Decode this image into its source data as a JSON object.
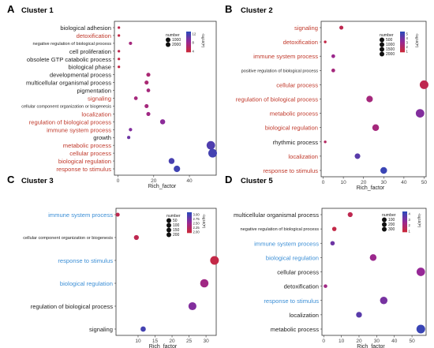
{
  "figure": {
    "colors": {
      "red_label": "#c0392b",
      "blue_label": "#3c8fd6",
      "black_label": "#222222",
      "dot_low": "#c8283e",
      "dot_high": "#3048b8"
    }
  },
  "chart_data": [
    {
      "type": "scatter",
      "panel": "A",
      "title": "Cluster 1",
      "xlabel": "Rich_factor",
      "ylabel": "",
      "xlim": [
        -2,
        55
      ],
      "xticks": [
        0,
        20,
        40
      ],
      "legend": {
        "size_title": "number",
        "size_values": [
          1000,
          2000
        ],
        "size_labels": [
          "1000",
          "2000"
        ],
        "color_title": "-log10(P)",
        "color_ticks": [
          "12",
          "8",
          "4"
        ],
        "placement": "top-right"
      },
      "categories": [
        "biological adhesion",
        "detoxification",
        "negative regulation of biological process",
        "cell proliferation",
        "obsolete GTP catabolic process",
        "biological phase",
        "developmental process",
        "multicellular organismal process",
        "pigmentation",
        "signaling",
        "cellular component organization or biogenesis",
        "localization",
        "regulation of biological process",
        "immune system process",
        "growth",
        "metabolic process",
        "cellular process",
        "biological regulation",
        "response to stimulus"
      ],
      "label_colors": [
        "black",
        "red",
        "black",
        "black",
        "black",
        "black",
        "black",
        "black",
        "black",
        "red",
        "black",
        "red",
        "red",
        "red",
        "black",
        "red",
        "red",
        "red",
        "red"
      ],
      "label_sizes": [
        "n",
        "n",
        "s",
        "n",
        "n",
        "n",
        "n",
        "n",
        "n",
        "n",
        "s",
        "n",
        "n",
        "n",
        "n",
        "n",
        "n",
        "n",
        "n"
      ],
      "points": [
        {
          "x": 0.5,
          "number": 20,
          "color": 0.1
        },
        {
          "x": 0.5,
          "number": 20,
          "color": 0.05
        },
        {
          "x": 7,
          "number": 80,
          "color": 0.35
        },
        {
          "x": 0.5,
          "number": 20,
          "color": 0.1
        },
        {
          "x": 0.5,
          "number": 20,
          "color": 0.05
        },
        {
          "x": 0.5,
          "number": 20,
          "color": 0.05
        },
        {
          "x": 17,
          "number": 200,
          "color": 0.3
        },
        {
          "x": 16,
          "number": 200,
          "color": 0.3
        },
        {
          "x": 17,
          "number": 150,
          "color": 0.35
        },
        {
          "x": 10,
          "number": 150,
          "color": 0.35
        },
        {
          "x": 16,
          "number": 200,
          "color": 0.35
        },
        {
          "x": 17,
          "number": 200,
          "color": 0.4
        },
        {
          "x": 25,
          "number": 450,
          "color": 0.55
        },
        {
          "x": 7,
          "number": 100,
          "color": 0.6
        },
        {
          "x": 6,
          "number": 80,
          "color": 0.7
        },
        {
          "x": 52,
          "number": 1900,
          "color": 0.85
        },
        {
          "x": 53,
          "number": 2000,
          "color": 0.9
        },
        {
          "x": 30,
          "number": 700,
          "color": 0.88
        },
        {
          "x": 33,
          "number": 900,
          "color": 0.92
        }
      ]
    },
    {
      "type": "scatter",
      "panel": "B",
      "title": "Cluster 2",
      "xlabel": "Rich_factor",
      "ylabel": "",
      "xlim": [
        -1,
        51
      ],
      "xticks": [
        0,
        10,
        20,
        30,
        40,
        50
      ],
      "legend": {
        "size_title": "number",
        "size_values": [
          500,
          1000,
          1500,
          2000
        ],
        "size_labels": [
          "500",
          "1000",
          "1500",
          "2000"
        ],
        "color_title": "-log10(P)",
        "color_ticks": [
          "5",
          "4",
          "3",
          "2",
          "1"
        ],
        "placement": "top-right"
      },
      "categories": [
        "signaling",
        "detoxification",
        "immune system process",
        "positive regulation of biological process",
        "cellular process",
        "regulation of biological process",
        "metabolic process",
        "biological regulation",
        "rhythmic process",
        "localization",
        "response to stimulus"
      ],
      "label_colors": [
        "red",
        "red",
        "red",
        "black",
        "red",
        "red",
        "red",
        "red",
        "black",
        "red",
        "red"
      ],
      "label_sizes": [
        "n",
        "n",
        "n",
        "s",
        "n",
        "n",
        "n",
        "n",
        "n",
        "n",
        "n"
      ],
      "points": [
        {
          "x": 9,
          "number": 200,
          "color": 0.1
        },
        {
          "x": 1,
          "number": 30,
          "color": 0.05
        },
        {
          "x": 5,
          "number": 150,
          "color": 0.45
        },
        {
          "x": 5,
          "number": 150,
          "color": 0.35
        },
        {
          "x": 50,
          "number": 2000,
          "color": 0.1
        },
        {
          "x": 23,
          "number": 900,
          "color": 0.35
        },
        {
          "x": 48,
          "number": 1900,
          "color": 0.6
        },
        {
          "x": 26,
          "number": 1000,
          "color": 0.35
        },
        {
          "x": 1,
          "number": 30,
          "color": 0.2
        },
        {
          "x": 17,
          "number": 600,
          "color": 0.8
        },
        {
          "x": 30,
          "number": 1000,
          "color": 0.95
        }
      ]
    },
    {
      "type": "scatter",
      "panel": "C",
      "title": "Cluster 3",
      "xlabel": "Rich_factor",
      "ylabel": "",
      "xlim": [
        3.5,
        33
      ],
      "xticks": [
        10,
        15,
        20,
        25,
        30
      ],
      "legend": {
        "size_title": "number",
        "size_values": [
          50,
          100,
          150,
          200
        ],
        "size_labels": [
          "50",
          "100",
          "150",
          "200"
        ],
        "color_title": "-log10(P)",
        "color_ticks": [
          "3.00",
          "2.75",
          "2.50",
          "2.25",
          "2.00"
        ],
        "placement": "top-right"
      },
      "categories": [
        "immune system process",
        "cellular component organization or biogenesis",
        "response to stimulus",
        "biological regulation",
        "regulation of biological process",
        "signaling"
      ],
      "label_colors": [
        "blue",
        "black",
        "blue",
        "blue",
        "black",
        "black"
      ],
      "label_sizes": [
        "n",
        "s",
        "n",
        "n",
        "n",
        "n"
      ],
      "points": [
        {
          "x": 4,
          "number": 20,
          "color": 0.1
        },
        {
          "x": 9.5,
          "number": 40,
          "color": 0.1
        },
        {
          "x": 32.5,
          "number": 200,
          "color": 0.05
        },
        {
          "x": 29.5,
          "number": 180,
          "color": 0.4
        },
        {
          "x": 26,
          "number": 160,
          "color": 0.6
        },
        {
          "x": 11.5,
          "number": 50,
          "color": 0.9
        }
      ]
    },
    {
      "type": "scatter",
      "panel": "D",
      "title": "Cluster 5",
      "xlabel": "Rich_factor",
      "ylabel": "",
      "xlim": [
        -1,
        58
      ],
      "xticks": [
        0,
        10,
        20,
        30,
        40,
        50
      ],
      "legend": {
        "size_title": "number",
        "size_values": [
          100,
          200,
          300
        ],
        "size_labels": [
          "100",
          "200",
          "300"
        ],
        "color_title": "-log10(P)",
        "color_ticks": [
          "4",
          "3",
          "2",
          "1"
        ],
        "placement": "top-right"
      },
      "categories": [
        "multicellular organismal process",
        "negative regulation of biological process",
        "immune system process",
        "biological regulation",
        "cellular process",
        "detoxification",
        "response to stimulus",
        "localization",
        "metabolic process"
      ],
      "label_colors": [
        "black",
        "black",
        "blue",
        "blue",
        "black",
        "black",
        "blue",
        "black",
        "black"
      ],
      "label_sizes": [
        "n",
        "s",
        "n",
        "n",
        "n",
        "n",
        "n",
        "n",
        "n"
      ],
      "points": [
        {
          "x": 15,
          "number": 60,
          "color": 0.1
        },
        {
          "x": 6,
          "number": 40,
          "color": 0.05
        },
        {
          "x": 5,
          "number": 40,
          "color": 0.7
        },
        {
          "x": 28,
          "number": 150,
          "color": 0.45
        },
        {
          "x": 55,
          "number": 280,
          "color": 0.5
        },
        {
          "x": 1,
          "number": 20,
          "color": 0.4
        },
        {
          "x": 34,
          "number": 200,
          "color": 0.65
        },
        {
          "x": 20,
          "number": 100,
          "color": 0.8
        },
        {
          "x": 55,
          "number": 300,
          "color": 0.95
        }
      ]
    }
  ]
}
